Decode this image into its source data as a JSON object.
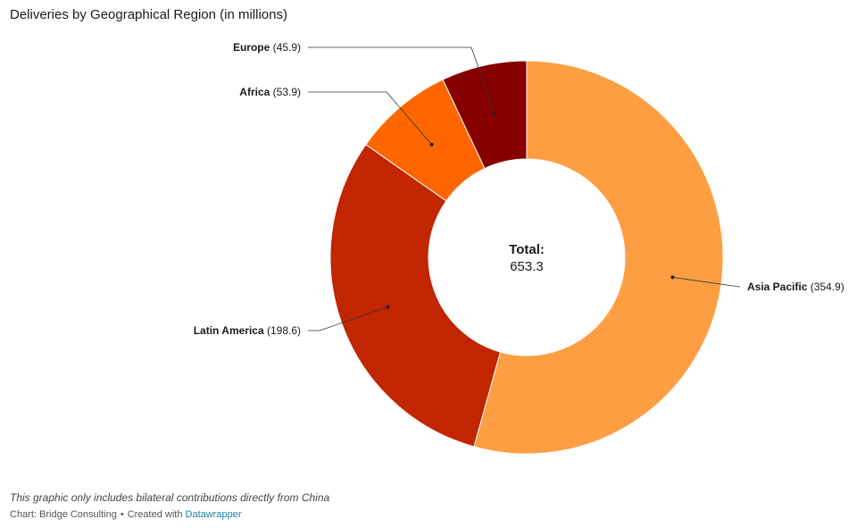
{
  "title": "Deliveries by Geographical Region (in millions)",
  "notes": "This graphic only includes bilateral contributions directly from China",
  "footer": {
    "source": "Chart: Bridge Consulting",
    "separator": "•",
    "created_with": "Created with",
    "tool_link": "Datawrapper"
  },
  "chart_data": {
    "type": "pie",
    "variant": "donut",
    "title": "Deliveries by Geographical Region (in millions)",
    "center": {
      "label": "Total:",
      "value": "653.3"
    },
    "slices": [
      {
        "name": "Asia Pacific",
        "value": 354.9,
        "value_label": "(354.9)",
        "color": "#fd9e43"
      },
      {
        "name": "Latin America",
        "value": 198.6,
        "value_label": "(198.6)",
        "color": "#c12600"
      },
      {
        "name": "Africa",
        "value": 53.9,
        "value_label": "(53.9)",
        "color": "#ff6600"
      },
      {
        "name": "Europe",
        "value": 45.9,
        "value_label": "(45.9)",
        "color": "#870000"
      }
    ]
  }
}
